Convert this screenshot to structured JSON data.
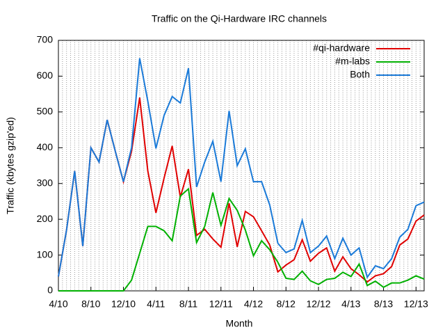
{
  "chart_data": {
    "type": "line",
    "title": "Traffic on the Qi-Hardware IRC channels",
    "x_label": "Month",
    "y_label": "Traffic (kbytes gzip'ed)",
    "categories": [
      "4/10",
      null,
      null,
      null,
      "8/10",
      null,
      null,
      null,
      "12/10",
      null,
      null,
      null,
      "4/11",
      null,
      null,
      null,
      "8/11",
      null,
      null,
      null,
      "12/11",
      null,
      null,
      null,
      "4/12",
      null,
      null,
      null,
      "8/12",
      null,
      null,
      null,
      "12/12",
      null,
      null,
      null,
      "4/13",
      null,
      null,
      null,
      "8/13",
      null,
      null,
      null,
      "12/13",
      null
    ],
    "series": [
      {
        "name": "#qi-hardware",
        "color": "#e00000",
        "values": [
          40,
          170,
          335,
          125,
          400,
          360,
          478,
          390,
          305,
          390,
          540,
          335,
          218,
          315,
          405,
          262,
          340,
          155,
          172,
          145,
          122,
          245,
          123,
          222,
          207,
          168,
          128,
          53,
          72,
          87,
          143,
          83,
          105,
          120,
          55,
          95,
          62,
          45,
          25,
          42,
          48,
          68,
          128,
          145,
          195,
          212
        ]
      },
      {
        "name": "#m-labs",
        "color": "#00b000",
        "values": [
          0,
          0,
          0,
          0,
          0,
          0,
          0,
          0,
          0,
          30,
          105,
          180,
          180,
          168,
          140,
          265,
          285,
          135,
          180,
          275,
          183,
          258,
          225,
          170,
          98,
          140,
          115,
          80,
          35,
          32,
          55,
          28,
          18,
          32,
          35,
          52,
          40,
          75,
          15,
          27,
          10,
          22,
          22,
          30,
          42,
          33
        ]
      },
      {
        "name": "Both",
        "color": "#1a7ad8",
        "values": [
          40,
          170,
          335,
          125,
          400,
          360,
          478,
          390,
          305,
          400,
          650,
          530,
          398,
          490,
          543,
          525,
          622,
          290,
          360,
          418,
          305,
          503,
          350,
          397,
          305,
          305,
          240,
          133,
          107,
          117,
          197,
          107,
          125,
          153,
          90,
          147,
          100,
          120,
          38,
          70,
          62,
          90,
          150,
          172,
          238,
          248
        ]
      }
    ],
    "ylim": [
      0,
      700
    ],
    "yticks": [
      0,
      100,
      200,
      300,
      400,
      500,
      600,
      700
    ],
    "legend": "top-right"
  }
}
